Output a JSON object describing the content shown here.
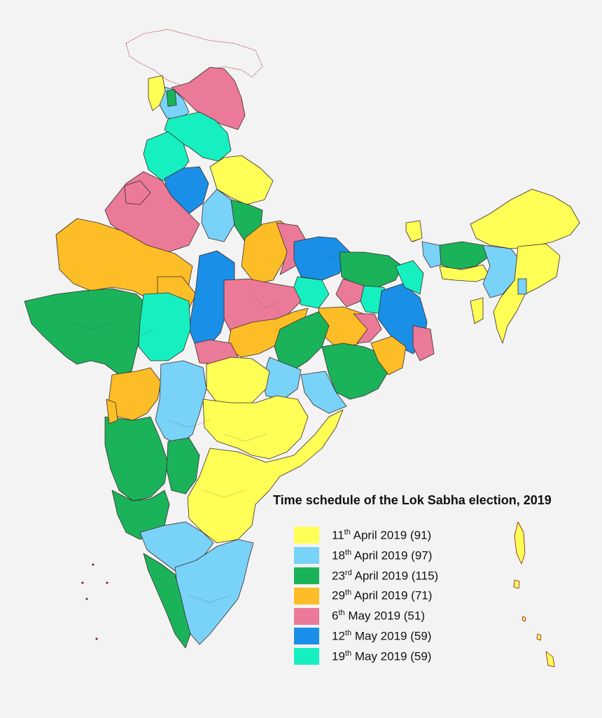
{
  "title": "Time schedule of the Lok Sabha election, 2019",
  "legend": [
    {
      "day": "11",
      "sup": "th",
      "rest": " April 2019 (91)",
      "color": "#ffff55"
    },
    {
      "day": "18",
      "sup": "th",
      "rest": " April 2019 (97)",
      "color": "#79d2f8"
    },
    {
      "day": "23",
      "sup": "rd",
      "rest": " April 2019 (115)",
      "color": "#1bb35a"
    },
    {
      "day": "29",
      "sup": "th",
      "rest": " April 2019 (71)",
      "color": "#fdbd26"
    },
    {
      "day": "6",
      "sup": "th",
      "rest": " May 2019 (51)",
      "color": "#ea7a98"
    },
    {
      "day": "12",
      "sup": "th",
      "rest": " May 2019 (59)",
      "color": "#1a8fe7"
    },
    {
      "day": "19",
      "sup": "th",
      "rest": " May 2019 (59)",
      "color": "#16f0c0"
    }
  ]
}
